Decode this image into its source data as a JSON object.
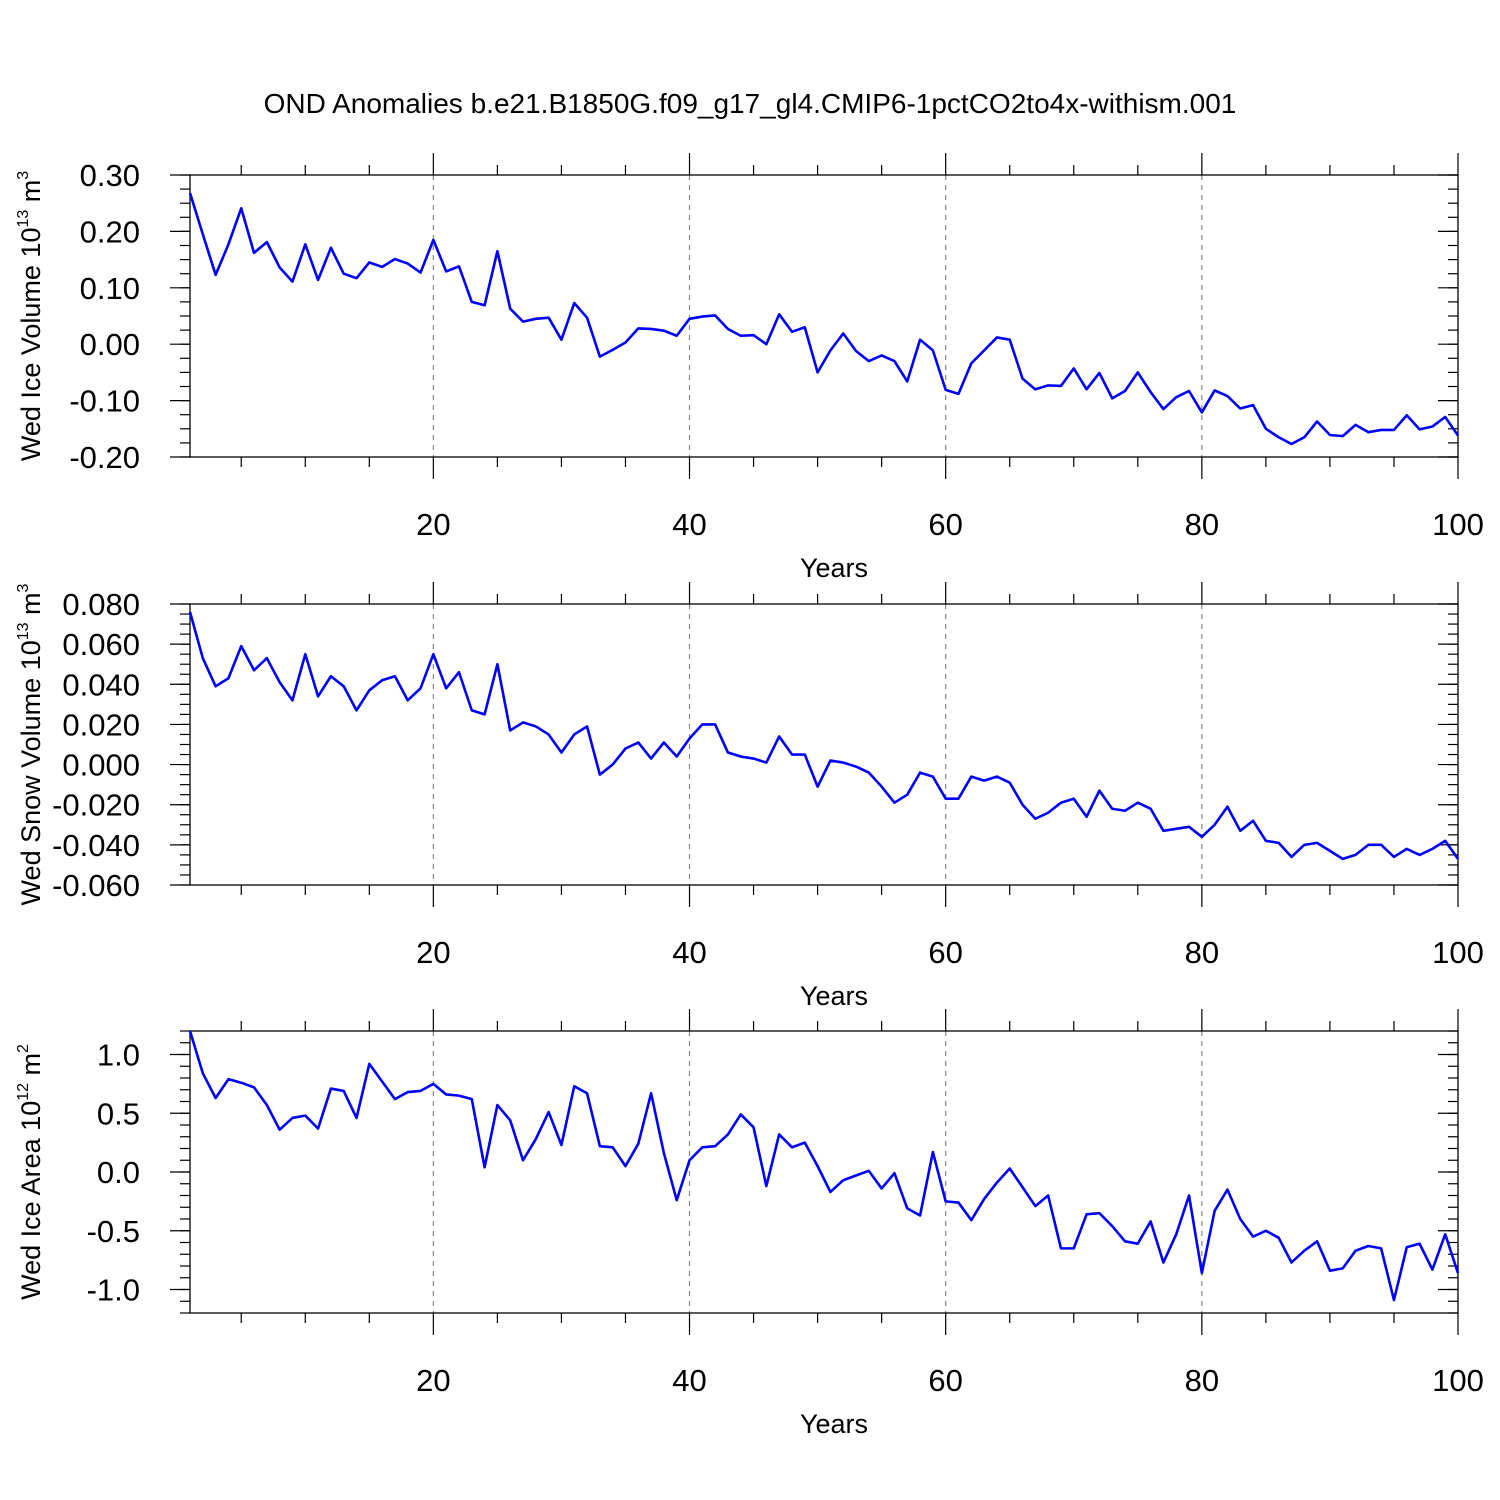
{
  "figure": {
    "title": "OND Anomalies b.e21.B1850G.f09_g17_gl4.CMIP6-1pctCO2to4x-withism.001"
  },
  "chart_data": [
    {
      "type": "line",
      "xlabel": "Years",
      "ylabel": {
        "base": "Wed Ice Volume 10",
        "exponent": "13",
        "unit": " m",
        "unit_exponent": "3"
      },
      "xlim": [
        1,
        100
      ],
      "ylim": [
        -0.2,
        0.3
      ],
      "xticks": [
        20,
        40,
        60,
        80,
        100
      ],
      "xtick_labels": [
        "20",
        "40",
        "60",
        "80",
        "100"
      ],
      "yticks": [
        -0.2,
        -0.1,
        0.0,
        0.1,
        0.2,
        0.3
      ],
      "ytick_labels": [
        "-0.20",
        "-0.10",
        "0.00",
        "0.10",
        "0.20",
        "0.30"
      ],
      "y_minor_step": 0.025,
      "grid": "vertical dashed at major x ticks",
      "color": "#0000ff",
      "x": [
        1,
        2,
        3,
        4,
        5,
        6,
        7,
        8,
        9,
        10,
        11,
        12,
        13,
        14,
        15,
        16,
        17,
        18,
        19,
        20,
        21,
        22,
        23,
        24,
        25,
        26,
        27,
        28,
        29,
        30,
        31,
        32,
        33,
        34,
        35,
        36,
        37,
        38,
        39,
        40,
        41,
        42,
        43,
        44,
        45,
        46,
        47,
        48,
        49,
        50,
        51,
        52,
        53,
        54,
        55,
        56,
        57,
        58,
        59,
        60,
        61,
        62,
        63,
        64,
        65,
        66,
        67,
        68,
        69,
        70,
        71,
        72,
        73,
        74,
        75,
        76,
        77,
        78,
        79,
        80,
        81,
        82,
        83,
        84,
        85,
        86,
        87,
        88,
        89,
        90,
        91,
        92,
        93,
        94,
        95,
        96,
        97,
        98,
        99,
        100
      ],
      "values": [
        0.268,
        0.195,
        0.123,
        0.177,
        0.241,
        0.162,
        0.181,
        0.136,
        0.111,
        0.177,
        0.114,
        0.171,
        0.125,
        0.117,
        0.145,
        0.137,
        0.151,
        0.143,
        0.127,
        0.185,
        0.129,
        0.138,
        0.075,
        0.069,
        0.165,
        0.063,
        0.04,
        0.045,
        0.047,
        0.008,
        0.073,
        0.047,
        -0.022,
        -0.01,
        0.003,
        0.028,
        0.027,
        0.024,
        0.015,
        0.045,
        0.049,
        0.051,
        0.027,
        0.015,
        0.016,
        0.0,
        0.053,
        0.022,
        0.03,
        -0.05,
        -0.011,
        0.019,
        -0.012,
        -0.03,
        -0.02,
        -0.03,
        -0.066,
        0.008,
        -0.011,
        -0.081,
        -0.088,
        -0.034,
        -0.011,
        0.012,
        0.008,
        -0.061,
        -0.08,
        -0.073,
        -0.074,
        -0.043,
        -0.08,
        -0.051,
        -0.096,
        -0.083,
        -0.05,
        -0.085,
        -0.115,
        -0.094,
        -0.083,
        -0.121,
        -0.082,
        -0.092,
        -0.114,
        -0.108,
        -0.15,
        -0.165,
        -0.177,
        -0.165,
        -0.137,
        -0.161,
        -0.163,
        -0.143,
        -0.156,
        -0.152,
        -0.152,
        -0.126,
        -0.151,
        -0.146,
        -0.129,
        -0.162
      ]
    },
    {
      "type": "line",
      "xlabel": "Years",
      "ylabel": {
        "base": "Wed Snow Volume 10",
        "exponent": "13",
        "unit": " m",
        "unit_exponent": "3"
      },
      "xlim": [
        1,
        100
      ],
      "ylim": [
        -0.06,
        0.08
      ],
      "xticks": [
        20,
        40,
        60,
        80,
        100
      ],
      "xtick_labels": [
        "20",
        "40",
        "60",
        "80",
        "100"
      ],
      "yticks": [
        -0.06,
        -0.04,
        -0.02,
        0.0,
        0.02,
        0.04,
        0.06,
        0.08
      ],
      "ytick_labels": [
        "-0.060",
        "-0.040",
        "-0.020",
        "0.000",
        "0.020",
        "0.040",
        "0.060",
        "0.080"
      ],
      "y_minor_step": 0.005,
      "grid": "vertical dashed at major x ticks",
      "color": "#0000ff",
      "x": [
        1,
        2,
        3,
        4,
        5,
        6,
        7,
        8,
        9,
        10,
        11,
        12,
        13,
        14,
        15,
        16,
        17,
        18,
        19,
        20,
        21,
        22,
        23,
        24,
        25,
        26,
        27,
        28,
        29,
        30,
        31,
        32,
        33,
        34,
        35,
        36,
        37,
        38,
        39,
        40,
        41,
        42,
        43,
        44,
        45,
        46,
        47,
        48,
        49,
        50,
        51,
        52,
        53,
        54,
        55,
        56,
        57,
        58,
        59,
        60,
        61,
        62,
        63,
        64,
        65,
        66,
        67,
        68,
        69,
        70,
        71,
        72,
        73,
        74,
        75,
        76,
        77,
        78,
        79,
        80,
        81,
        82,
        83,
        84,
        85,
        86,
        87,
        88,
        89,
        90,
        91,
        92,
        93,
        94,
        95,
        96,
        97,
        98,
        99,
        100
      ],
      "values": [
        0.076,
        0.053,
        0.039,
        0.043,
        0.059,
        0.047,
        0.053,
        0.041,
        0.032,
        0.055,
        0.034,
        0.044,
        0.039,
        0.027,
        0.037,
        0.042,
        0.044,
        0.032,
        0.038,
        0.055,
        0.038,
        0.046,
        0.027,
        0.025,
        0.05,
        0.017,
        0.021,
        0.019,
        0.015,
        0.006,
        0.015,
        0.019,
        -0.005,
        0.0,
        0.008,
        0.011,
        0.003,
        0.011,
        0.004,
        0.013,
        0.02,
        0.02,
        0.006,
        0.004,
        0.003,
        0.001,
        0.014,
        0.005,
        0.005,
        -0.011,
        0.002,
        0.001,
        -0.001,
        -0.004,
        -0.011,
        -0.019,
        -0.015,
        -0.004,
        -0.006,
        -0.017,
        -0.017,
        -0.006,
        -0.008,
        -0.006,
        -0.009,
        -0.02,
        -0.027,
        -0.024,
        -0.019,
        -0.017,
        -0.026,
        -0.013,
        -0.022,
        -0.023,
        -0.019,
        -0.022,
        -0.033,
        -0.032,
        -0.031,
        -0.036,
        -0.03,
        -0.021,
        -0.033,
        -0.028,
        -0.038,
        -0.039,
        -0.046,
        -0.04,
        -0.039,
        -0.043,
        -0.047,
        -0.045,
        -0.04,
        -0.04,
        -0.046,
        -0.042,
        -0.045,
        -0.042,
        -0.038,
        -0.047
      ]
    },
    {
      "type": "line",
      "xlabel": "Years",
      "ylabel": {
        "base": "Wed Ice Area 10",
        "exponent": "12",
        "unit": " m",
        "unit_exponent": "2"
      },
      "xlim": [
        1,
        100
      ],
      "ylim": [
        -1.2,
        1.2
      ],
      "xticks": [
        20,
        40,
        60,
        80,
        100
      ],
      "xtick_labels": [
        "20",
        "40",
        "60",
        "80",
        "100"
      ],
      "yticks": [
        -1.0,
        -0.5,
        0.0,
        0.5,
        1.0
      ],
      "ytick_labels": [
        "-1.0",
        "-0.5",
        "0.0",
        "0.5",
        "1.0"
      ],
      "y_minor_step": 0.1,
      "grid": "vertical dashed at major x ticks",
      "color": "#0000ff",
      "x": [
        1,
        2,
        3,
        4,
        5,
        6,
        7,
        8,
        9,
        10,
        11,
        12,
        13,
        14,
        15,
        16,
        17,
        18,
        19,
        20,
        21,
        22,
        23,
        24,
        25,
        26,
        27,
        28,
        29,
        30,
        31,
        32,
        33,
        34,
        35,
        36,
        37,
        38,
        39,
        40,
        41,
        42,
        43,
        44,
        45,
        46,
        47,
        48,
        49,
        50,
        51,
        52,
        53,
        54,
        55,
        56,
        57,
        58,
        59,
        60,
        61,
        62,
        63,
        64,
        65,
        66,
        67,
        68,
        69,
        70,
        71,
        72,
        73,
        74,
        75,
        76,
        77,
        78,
        79,
        80,
        81,
        82,
        83,
        84,
        85,
        86,
        87,
        88,
        89,
        90,
        91,
        92,
        93,
        94,
        95,
        96,
        97,
        98,
        99,
        100
      ],
      "values": [
        1.2,
        0.84,
        0.63,
        0.79,
        0.76,
        0.72,
        0.57,
        0.36,
        0.46,
        0.48,
        0.37,
        0.71,
        0.69,
        0.46,
        0.92,
        0.77,
        0.62,
        0.68,
        0.69,
        0.75,
        0.66,
        0.65,
        0.62,
        0.04,
        0.57,
        0.44,
        0.1,
        0.28,
        0.51,
        0.23,
        0.73,
        0.67,
        0.22,
        0.21,
        0.05,
        0.24,
        0.67,
        0.16,
        -0.24,
        0.1,
        0.21,
        0.22,
        0.32,
        0.49,
        0.38,
        -0.12,
        0.32,
        0.21,
        0.25,
        0.05,
        -0.17,
        -0.07,
        -0.03,
        0.01,
        -0.14,
        -0.01,
        -0.31,
        -0.37,
        0.17,
        -0.25,
        -0.26,
        -0.41,
        -0.23,
        -0.09,
        0.03,
        -0.13,
        -0.29,
        -0.2,
        -0.65,
        -0.65,
        -0.36,
        -0.35,
        -0.46,
        -0.59,
        -0.61,
        -0.42,
        -0.77,
        -0.53,
        -0.2,
        -0.86,
        -0.33,
        -0.15,
        -0.4,
        -0.55,
        -0.5,
        -0.56,
        -0.77,
        -0.67,
        -0.59,
        -0.84,
        -0.82,
        -0.67,
        -0.63,
        -0.65,
        -1.09,
        -0.64,
        -0.61,
        -0.83,
        -0.53,
        -0.86
      ]
    }
  ]
}
